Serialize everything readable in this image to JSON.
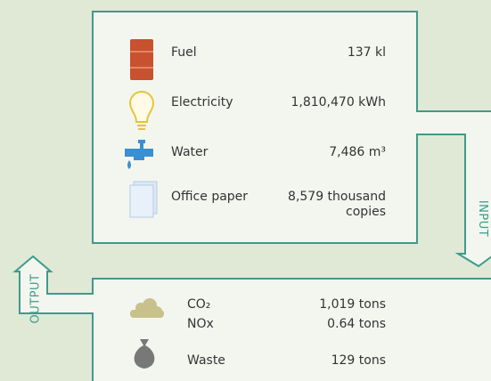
{
  "input": {
    "label": "INPUT",
    "items": [
      {
        "name": "Fuel",
        "value": "137 kl"
      },
      {
        "name": "Electricity",
        "value": "1,810,470 kWh"
      },
      {
        "name": "Water",
        "value": "7,486 m³"
      },
      {
        "name": "Office paper",
        "value": "8,579 thousand copies"
      }
    ]
  },
  "output": {
    "label": "OUTPUT",
    "items": [
      {
        "name": "CO₂",
        "value": "1,019 tons"
      },
      {
        "name": "NOx",
        "value": "0.64 tons"
      },
      {
        "name": "Waste",
        "value": "129 tons"
      }
    ]
  }
}
